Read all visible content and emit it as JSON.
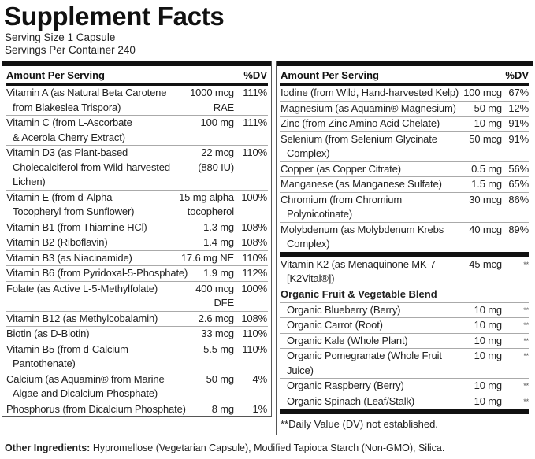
{
  "title": "Supplement Facts",
  "serving_size": "Serving Size 1 Capsule",
  "servings_per_container": "Servings Per Container 240",
  "header": {
    "amount": "Amount Per Serving",
    "dv": "%DV"
  },
  "left": [
    {
      "name": "Vitamin A (as Natural Beta Carotene",
      "cont": "from Blakeslea Trispora)",
      "amount": "1000 mcg\nRAE",
      "dv": "111%"
    },
    {
      "name": "Vitamin C (from L-Ascorbate",
      "cont": "& Acerola Cherry Extract)",
      "amount": "100 mg",
      "dv": "111%"
    },
    {
      "name": "Vitamin D3 (as Plant-based",
      "cont": "Cholecalciferol from Wild-harvested Lichen)",
      "amount": "22 mcg\n(880 IU)",
      "dv": "110%"
    },
    {
      "name": "Vitamin E (from d-Alpha",
      "cont": "Tocopheryl from Sunflower)",
      "amount": "15 mg alpha\ntocopherol",
      "dv": "100%"
    },
    {
      "name": "Vitamin B1 (from Thiamine HCl)",
      "amount": "1.3 mg",
      "dv": "108%"
    },
    {
      "name": "Vitamin B2 (Riboflavin)",
      "amount": "1.4 mg",
      "dv": "108%"
    },
    {
      "name": "Vitamin B3 (as Niacinamide)",
      "amount": "17.6 mg NE",
      "dv": "110%"
    },
    {
      "name": "Vitamin B6 (from Pyridoxal-5-Phosphate)",
      "amount": "1.9 mg",
      "dv": "112%"
    },
    {
      "name": "Folate (as Active L-5-Methylfolate)",
      "amount": "400 mcg\nDFE",
      "dv": "100%"
    },
    {
      "name": "Vitamin B12 (as Methylcobalamin)",
      "amount": "2.6 mcg",
      "dv": "108%"
    },
    {
      "name": "Biotin (as D-Biotin)",
      "amount": "33 mcg",
      "dv": "110%"
    },
    {
      "name": "Vitamin B5 (from d-Calcium",
      "cont": "Pantothenate)",
      "amount": "5.5 mg",
      "dv": "110%"
    },
    {
      "name": "Calcium (as Aquamin® from Marine",
      "cont": "Algae and Dicalcium Phosphate)",
      "amount": "50 mg",
      "dv": "4%"
    },
    {
      "name": "Phosphorus (from Dicalcium Phosphate)",
      "amount": "8 mg",
      "dv": "1%"
    }
  ],
  "right": [
    {
      "name": "Iodine (from Wild, Hand-harvested Kelp)",
      "amount": "100 mcg",
      "dv": "67%"
    },
    {
      "name": "Magnesium (as Aquamin® Magnesium)",
      "amount": "50 mg",
      "dv": "12%"
    },
    {
      "name": "Zinc (from Zinc Amino Acid Chelate)",
      "amount": "10 mg",
      "dv": "91%"
    },
    {
      "name": "Selenium (from Selenium Glycinate",
      "cont": "Complex)",
      "amount": "50 mcg",
      "dv": "91%"
    },
    {
      "name": "Copper (as Copper Citrate)",
      "amount": "0.5 mg",
      "dv": "56%"
    },
    {
      "name": "Manganese (as Manganese Sulfate)",
      "amount": "1.5 mg",
      "dv": "65%"
    },
    {
      "name": "Chromium (from Chromium",
      "cont": "Polynicotinate)",
      "amount": "30 mcg",
      "dv": "86%"
    },
    {
      "name": "Molybdenum (as Molybdenum Krebs",
      "cont": "Complex)",
      "amount": "40 mcg",
      "dv": "89%"
    }
  ],
  "k2": {
    "name": "Vitamin K2 (as Menaquinone MK-7",
    "cont": "[K2Vital®])",
    "amount": "45 mcg",
    "dv": "**"
  },
  "blend": {
    "title": "Organic Fruit & Vegetable Blend",
    "items": [
      {
        "name": "Organic Blueberry (Berry)",
        "amount": "10 mg",
        "dv": "**"
      },
      {
        "name": "Organic Carrot (Root)",
        "amount": "10 mg",
        "dv": "**"
      },
      {
        "name": "Organic Kale (Whole Plant)",
        "amount": "10 mg",
        "dv": "**"
      },
      {
        "name": "Organic Pomegranate (Whole Fruit Juice)",
        "amount": "10 mg",
        "dv": "**"
      },
      {
        "name": "Organic Raspberry (Berry)",
        "amount": "10 mg",
        "dv": "**"
      },
      {
        "name": "Organic Spinach (Leaf/Stalk)",
        "amount": "10 mg",
        "dv": "**"
      }
    ]
  },
  "footnote": "**Daily Value (DV) not established.",
  "other_ingredients": {
    "label": "Other Ingredients:",
    "text": " Hypromellose (Vegetarian Capsule), Modified Tapioca Starch (Non-GMO), Silica."
  }
}
